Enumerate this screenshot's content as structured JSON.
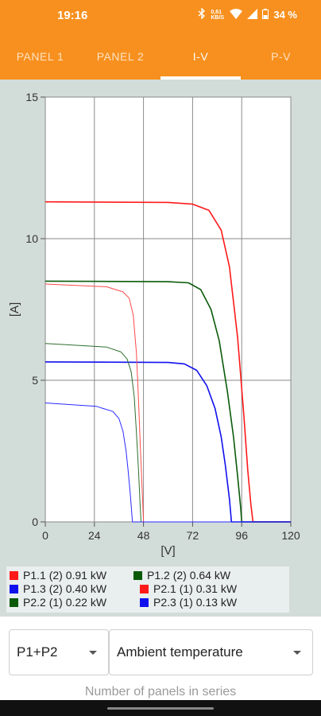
{
  "status": {
    "time": "19:16",
    "net_rate": "0,61 KB/S",
    "battery": "34 %"
  },
  "tabs": [
    {
      "label": "PANEL 1"
    },
    {
      "label": "PANEL 2"
    },
    {
      "label": "I-V"
    },
    {
      "label": "P-V"
    }
  ],
  "chart_data": {
    "type": "line",
    "xlabel": "[V]",
    "ylabel": "[A]",
    "xlim": [
      0,
      120
    ],
    "ylim": [
      0,
      15
    ],
    "xticks": [
      0,
      24,
      48,
      72,
      96,
      120
    ],
    "yticks": [
      0,
      5,
      10,
      15
    ],
    "grid": true,
    "series": [
      {
        "name": "P1.1 (2) 0.91 kW",
        "color": "#ff1a1a",
        "width": 1.6,
        "x": [
          0,
          60,
          72,
          80,
          86,
          90,
          94,
          97,
          99,
          100.5,
          101.5,
          120
        ],
        "y": [
          11.3,
          11.28,
          11.22,
          11.0,
          10.3,
          9.0,
          6.5,
          3.8,
          1.8,
          0.6,
          0,
          0
        ]
      },
      {
        "name": "P1.2 (2) 0.64 kW",
        "color": "#0a5a0a",
        "width": 1.6,
        "x": [
          0,
          60,
          70,
          76,
          81,
          85,
          89,
          92,
          94,
          95.5,
          96,
          120
        ],
        "y": [
          8.5,
          8.48,
          8.44,
          8.2,
          7.5,
          6.4,
          4.6,
          3.0,
          1.6,
          0.5,
          0,
          0
        ]
      },
      {
        "name": "P1.3 (2) 0.40 kW",
        "color": "#1010ee",
        "width": 1.6,
        "x": [
          0,
          60,
          68,
          74,
          79,
          83,
          86,
          88,
          90,
          91,
          120
        ],
        "y": [
          5.65,
          5.63,
          5.58,
          5.35,
          4.8,
          4.0,
          3.0,
          2.0,
          0.8,
          0,
          0
        ]
      },
      {
        "name": "P2.1 (1) 0.31 kW",
        "color": "#ff4a4a",
        "width": 1.0,
        "x": [
          0,
          30,
          38,
          41,
          43,
          44.5,
          45.5,
          46.5,
          47.5,
          48,
          120
        ],
        "y": [
          8.4,
          8.3,
          8.12,
          7.9,
          7.3,
          6.0,
          4.4,
          2.6,
          0.9,
          0,
          0
        ]
      },
      {
        "name": "P2.2 (1) 0.22 kW",
        "color": "#2e6e2e",
        "width": 1.0,
        "x": [
          0,
          30,
          37,
          40,
          42,
          43.5,
          44.5,
          45.5,
          46.3,
          46.8,
          120
        ],
        "y": [
          6.3,
          6.17,
          6.0,
          5.75,
          5.3,
          4.4,
          3.2,
          1.9,
          0.7,
          0,
          0
        ]
      },
      {
        "name": "P2.3 (1) 0.13 kW",
        "color": "#2a2aff",
        "width": 1.0,
        "x": [
          0,
          25,
          33,
          36,
          38,
          39.5,
          40.5,
          41.5,
          42.2,
          42.6,
          120
        ],
        "y": [
          4.2,
          4.08,
          3.9,
          3.65,
          3.2,
          2.5,
          1.8,
          1.0,
          0.35,
          0,
          0
        ]
      }
    ]
  },
  "legend": [
    {
      "label": "P1.1 (2) 0.91 kW",
      "color": "#ff1a1a"
    },
    {
      "label": "P1.2 (2) 0.64 kW",
      "color": "#0a5a0a"
    },
    {
      "label": "P1.3 (2) 0.40 kW",
      "color": "#1010ee"
    },
    {
      "label": "P2.1 (1) 0.31 kW",
      "color": "#ff1a1a"
    },
    {
      "label": "P2.2 (1) 0.22 kW",
      "color": "#0a5a0a"
    },
    {
      "label": "P2.3 (1) 0.13 kW",
      "color": "#1010ee"
    }
  ],
  "controls": {
    "combo_value": "P1+P2",
    "temperature_value": "Ambient temperature",
    "hint": "Number of panels in series"
  }
}
